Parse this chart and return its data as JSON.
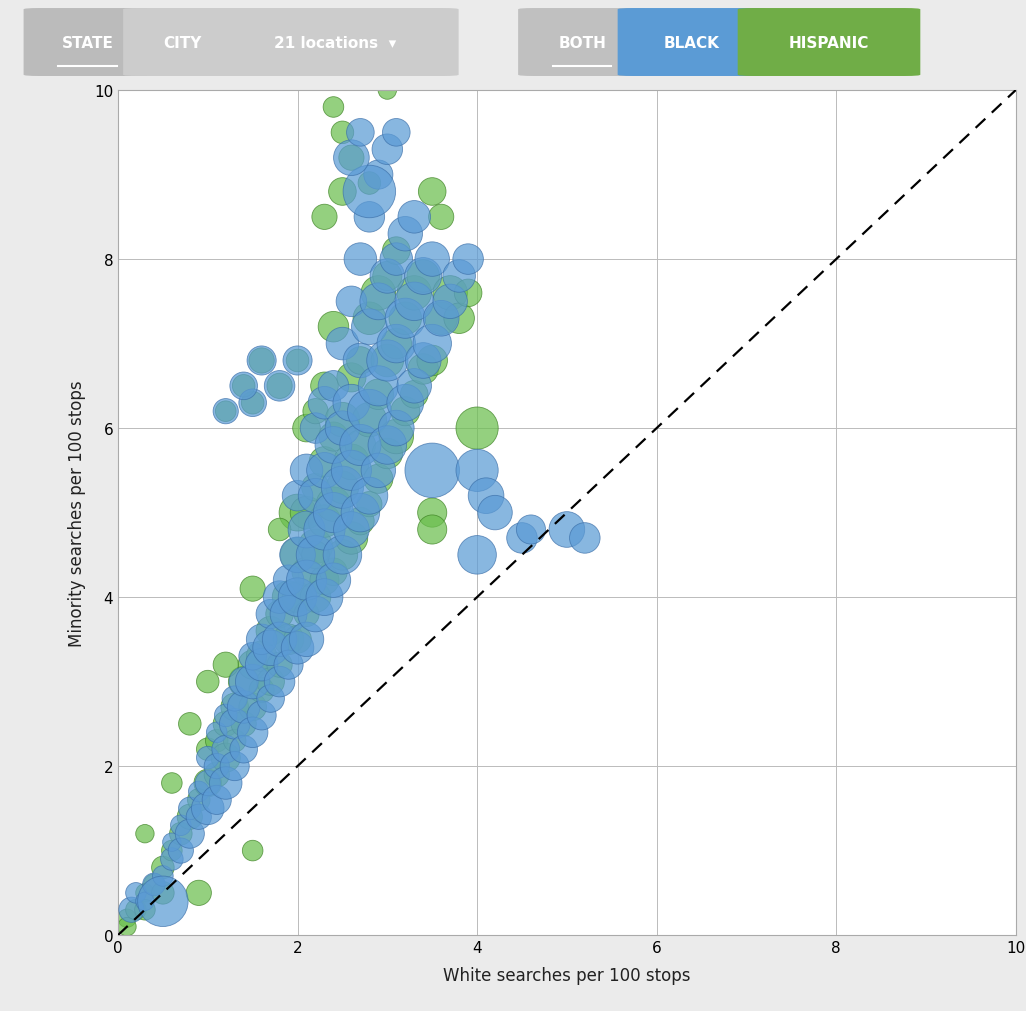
{
  "xlabel": "White searches per 100 stops",
  "ylabel": "Minority searches per 100 stops",
  "xlim": [
    0,
    10
  ],
  "ylim": [
    0,
    10
  ],
  "xticks": [
    0,
    2,
    4,
    6,
    8,
    10
  ],
  "yticks": [
    0,
    2,
    4,
    6,
    8,
    10
  ],
  "blue_color": "#5B9BD5",
  "green_color": "#6BBF4E",
  "blue_edge": "#3A6EA8",
  "green_edge": "#3A8020",
  "background": "#ebebeb",
  "plot_background": "#ffffff",
  "blue_data": [
    [
      0.15,
      0.3,
      15
    ],
    [
      0.2,
      0.5,
      10
    ],
    [
      0.3,
      0.4,
      8
    ],
    [
      0.4,
      0.6,
      12
    ],
    [
      0.5,
      0.7,
      10
    ],
    [
      0.5,
      0.4,
      60
    ],
    [
      0.6,
      0.9,
      12
    ],
    [
      0.6,
      1.1,
      8
    ],
    [
      0.7,
      1.0,
      15
    ],
    [
      0.7,
      1.3,
      10
    ],
    [
      0.8,
      1.2,
      20
    ],
    [
      0.8,
      1.5,
      12
    ],
    [
      0.9,
      1.4,
      15
    ],
    [
      0.9,
      1.7,
      10
    ],
    [
      1.0,
      1.5,
      25
    ],
    [
      1.0,
      1.8,
      15
    ],
    [
      1.0,
      2.1,
      12
    ],
    [
      1.1,
      1.6,
      20
    ],
    [
      1.1,
      2.0,
      15
    ],
    [
      1.1,
      2.4,
      10
    ],
    [
      1.2,
      1.8,
      25
    ],
    [
      1.2,
      2.2,
      18
    ],
    [
      1.2,
      2.6,
      12
    ],
    [
      1.3,
      2.0,
      20
    ],
    [
      1.3,
      2.5,
      22
    ],
    [
      1.3,
      2.8,
      15
    ],
    [
      1.4,
      2.2,
      18
    ],
    [
      1.4,
      2.7,
      25
    ],
    [
      1.4,
      3.0,
      20
    ],
    [
      1.5,
      2.4,
      22
    ],
    [
      1.5,
      3.0,
      28
    ],
    [
      1.5,
      3.3,
      18
    ],
    [
      1.6,
      2.6,
      20
    ],
    [
      1.6,
      3.2,
      25
    ],
    [
      1.6,
      3.5,
      22
    ],
    [
      1.7,
      2.8,
      18
    ],
    [
      1.7,
      3.4,
      30
    ],
    [
      1.7,
      3.8,
      20
    ],
    [
      1.8,
      3.0,
      22
    ],
    [
      1.8,
      3.5,
      28
    ],
    [
      1.8,
      4.0,
      25
    ],
    [
      1.9,
      3.2,
      20
    ],
    [
      1.9,
      3.8,
      32
    ],
    [
      1.9,
      4.2,
      22
    ],
    [
      2.0,
      3.4,
      25
    ],
    [
      2.0,
      4.0,
      35
    ],
    [
      2.0,
      4.5,
      30
    ],
    [
      2.0,
      5.2,
      22
    ],
    [
      2.1,
      3.5,
      28
    ],
    [
      2.1,
      4.2,
      38
    ],
    [
      2.1,
      4.8,
      32
    ],
    [
      2.1,
      5.5,
      25
    ],
    [
      2.2,
      3.8,
      30
    ],
    [
      2.2,
      4.5,
      35
    ],
    [
      2.2,
      5.2,
      28
    ],
    [
      2.2,
      6.0,
      22
    ],
    [
      2.3,
      4.0,
      32
    ],
    [
      2.3,
      4.8,
      40
    ],
    [
      2.3,
      5.5,
      30
    ],
    [
      2.3,
      6.3,
      25
    ],
    [
      2.4,
      4.2,
      28
    ],
    [
      2.4,
      5.0,
      38
    ],
    [
      2.4,
      5.8,
      32
    ],
    [
      2.4,
      6.5,
      22
    ],
    [
      2.5,
      4.5,
      35
    ],
    [
      2.5,
      5.3,
      42
    ],
    [
      2.5,
      6.0,
      28
    ],
    [
      2.5,
      7.0,
      25
    ],
    [
      2.6,
      4.8,
      30
    ],
    [
      2.6,
      5.5,
      38
    ],
    [
      2.6,
      6.3,
      32
    ],
    [
      2.6,
      7.5,
      22
    ],
    [
      2.7,
      5.0,
      35
    ],
    [
      2.7,
      5.8,
      40
    ],
    [
      2.7,
      6.8,
      28
    ],
    [
      2.7,
      8.0,
      25
    ],
    [
      2.8,
      5.2,
      32
    ],
    [
      2.8,
      6.2,
      45
    ],
    [
      2.8,
      7.2,
      30
    ],
    [
      2.8,
      8.5,
      22
    ],
    [
      2.9,
      5.5,
      28
    ],
    [
      2.9,
      6.5,
      38
    ],
    [
      2.9,
      7.5,
      32
    ],
    [
      2.9,
      9.0,
      20
    ],
    [
      3.0,
      5.8,
      35
    ],
    [
      3.0,
      6.8,
      40
    ],
    [
      3.0,
      7.8,
      28
    ],
    [
      3.0,
      9.3,
      22
    ],
    [
      3.1,
      6.0,
      30
    ],
    [
      3.1,
      7.0,
      35
    ],
    [
      3.1,
      8.0,
      25
    ],
    [
      3.1,
      9.5,
      18
    ],
    [
      3.2,
      6.3,
      32
    ],
    [
      3.2,
      7.3,
      38
    ],
    [
      3.2,
      8.3,
      28
    ],
    [
      3.3,
      6.5,
      28
    ],
    [
      3.3,
      7.5,
      35
    ],
    [
      3.3,
      8.5,
      25
    ],
    [
      3.4,
      6.8,
      30
    ],
    [
      3.4,
      7.8,
      32
    ],
    [
      3.5,
      5.5,
      70
    ],
    [
      3.5,
      7.0,
      35
    ],
    [
      3.5,
      8.0,
      28
    ],
    [
      3.6,
      7.3,
      30
    ],
    [
      3.7,
      7.5,
      28
    ],
    [
      3.8,
      7.8,
      25
    ],
    [
      3.9,
      8.0,
      22
    ],
    [
      4.0,
      5.5,
      42
    ],
    [
      4.0,
      4.5,
      35
    ],
    [
      4.1,
      5.2,
      30
    ],
    [
      4.2,
      5.0,
      28
    ],
    [
      4.5,
      4.7,
      22
    ],
    [
      4.6,
      4.8,
      20
    ],
    [
      5.0,
      4.8,
      30
    ],
    [
      5.2,
      4.7,
      22
    ],
    [
      2.8,
      8.8,
      65
    ],
    [
      2.6,
      9.2,
      30
    ],
    [
      2.7,
      9.5,
      18
    ],
    [
      1.5,
      6.3,
      18
    ],
    [
      1.8,
      6.5,
      22
    ],
    [
      2.0,
      6.8,
      20
    ],
    [
      1.2,
      6.2,
      15
    ],
    [
      1.4,
      6.5,
      18
    ],
    [
      1.6,
      6.8,
      20
    ]
  ],
  "green_data": [
    [
      0.1,
      0.2,
      8
    ],
    [
      0.2,
      0.3,
      10
    ],
    [
      0.3,
      0.5,
      8
    ],
    [
      0.4,
      0.6,
      10
    ],
    [
      0.5,
      0.8,
      12
    ],
    [
      0.6,
      1.0,
      10
    ],
    [
      0.7,
      1.2,
      12
    ],
    [
      0.8,
      1.4,
      15
    ],
    [
      0.9,
      1.6,
      12
    ],
    [
      1.0,
      1.8,
      18
    ],
    [
      1.0,
      2.2,
      12
    ],
    [
      1.1,
      1.9,
      15
    ],
    [
      1.1,
      2.3,
      12
    ],
    [
      1.2,
      2.1,
      20
    ],
    [
      1.2,
      2.5,
      15
    ],
    [
      1.3,
      2.3,
      12
    ],
    [
      1.3,
      2.7,
      18
    ],
    [
      1.4,
      2.5,
      15
    ],
    [
      1.4,
      3.0,
      22
    ],
    [
      1.5,
      2.7,
      18
    ],
    [
      1.5,
      3.2,
      20
    ],
    [
      1.6,
      2.9,
      15
    ],
    [
      1.6,
      3.3,
      22
    ],
    [
      1.7,
      3.0,
      18
    ],
    [
      1.7,
      3.6,
      20
    ],
    [
      1.8,
      3.2,
      15
    ],
    [
      1.8,
      3.8,
      18
    ],
    [
      1.9,
      3.5,
      22
    ],
    [
      1.9,
      4.0,
      25
    ],
    [
      2.0,
      3.5,
      18
    ],
    [
      2.0,
      4.0,
      22
    ],
    [
      2.0,
      4.5,
      28
    ],
    [
      2.0,
      5.0,
      32
    ],
    [
      2.1,
      3.8,
      15
    ],
    [
      2.1,
      4.3,
      20
    ],
    [
      2.1,
      5.0,
      25
    ],
    [
      2.1,
      6.0,
      18
    ],
    [
      2.2,
      4.0,
      22
    ],
    [
      2.2,
      4.6,
      28
    ],
    [
      2.2,
      5.3,
      18
    ],
    [
      2.2,
      6.2,
      15
    ],
    [
      2.3,
      4.2,
      20
    ],
    [
      2.3,
      4.9,
      25
    ],
    [
      2.3,
      5.6,
      22
    ],
    [
      2.3,
      6.5,
      18
    ],
    [
      2.4,
      4.3,
      18
    ],
    [
      2.4,
      5.1,
      28
    ],
    [
      2.4,
      5.9,
      20
    ],
    [
      2.4,
      7.2,
      22
    ],
    [
      2.5,
      4.5,
      22
    ],
    [
      2.5,
      5.3,
      25
    ],
    [
      2.5,
      6.1,
      28
    ],
    [
      2.5,
      8.8,
      18
    ],
    [
      2.6,
      4.7,
      25
    ],
    [
      2.6,
      5.6,
      30
    ],
    [
      2.6,
      6.6,
      20
    ],
    [
      2.7,
      4.9,
      18
    ],
    [
      2.7,
      5.8,
      22
    ],
    [
      2.7,
      6.8,
      18
    ],
    [
      2.8,
      5.1,
      15
    ],
    [
      2.8,
      6.1,
      28
    ],
    [
      2.8,
      7.3,
      25
    ],
    [
      2.9,
      5.4,
      20
    ],
    [
      2.9,
      6.4,
      22
    ],
    [
      2.9,
      7.6,
      28
    ],
    [
      3.0,
      5.7,
      22
    ],
    [
      3.0,
      6.8,
      25
    ],
    [
      3.0,
      7.8,
      20
    ],
    [
      3.1,
      5.9,
      28
    ],
    [
      3.1,
      7.0,
      22
    ],
    [
      3.1,
      8.1,
      18
    ],
    [
      3.2,
      6.2,
      20
    ],
    [
      3.2,
      7.3,
      25
    ],
    [
      3.3,
      6.4,
      18
    ],
    [
      3.3,
      7.6,
      28
    ],
    [
      3.4,
      6.7,
      22
    ],
    [
      3.4,
      7.8,
      25
    ],
    [
      3.5,
      5.0,
      20
    ],
    [
      3.5,
      6.8,
      22
    ],
    [
      3.6,
      7.3,
      25
    ],
    [
      3.7,
      7.6,
      28
    ],
    [
      3.8,
      7.3,
      22
    ],
    [
      3.9,
      7.6,
      18
    ],
    [
      4.0,
      6.0,
      42
    ],
    [
      3.5,
      4.8,
      20
    ],
    [
      0.1,
      0.1,
      8
    ],
    [
      0.3,
      0.3,
      10
    ],
    [
      0.5,
      0.5,
      12
    ],
    [
      0.9,
      0.5,
      15
    ],
    [
      1.5,
      1.0,
      10
    ],
    [
      2.3,
      8.5,
      15
    ],
    [
      2.4,
      9.8,
      10
    ],
    [
      2.5,
      9.5,
      12
    ],
    [
      2.6,
      9.2,
      15
    ],
    [
      3.0,
      10.0,
      8
    ],
    [
      2.8,
      8.9,
      12
    ],
    [
      3.5,
      8.8,
      18
    ],
    [
      3.6,
      8.5,
      15
    ],
    [
      1.0,
      3.0,
      12
    ],
    [
      1.5,
      4.1,
      15
    ],
    [
      1.8,
      4.8,
      12
    ],
    [
      2.2,
      4.5,
      18
    ],
    [
      0.3,
      1.2,
      8
    ],
    [
      0.6,
      1.8,
      10
    ],
    [
      0.8,
      2.5,
      12
    ],
    [
      1.2,
      3.2,
      15
    ],
    [
      1.5,
      6.3,
      12
    ],
    [
      1.8,
      6.5,
      15
    ],
    [
      2.0,
      6.8,
      12
    ],
    [
      1.2,
      6.2,
      10
    ],
    [
      1.4,
      6.5,
      12
    ],
    [
      1.6,
      6.8,
      15
    ]
  ]
}
